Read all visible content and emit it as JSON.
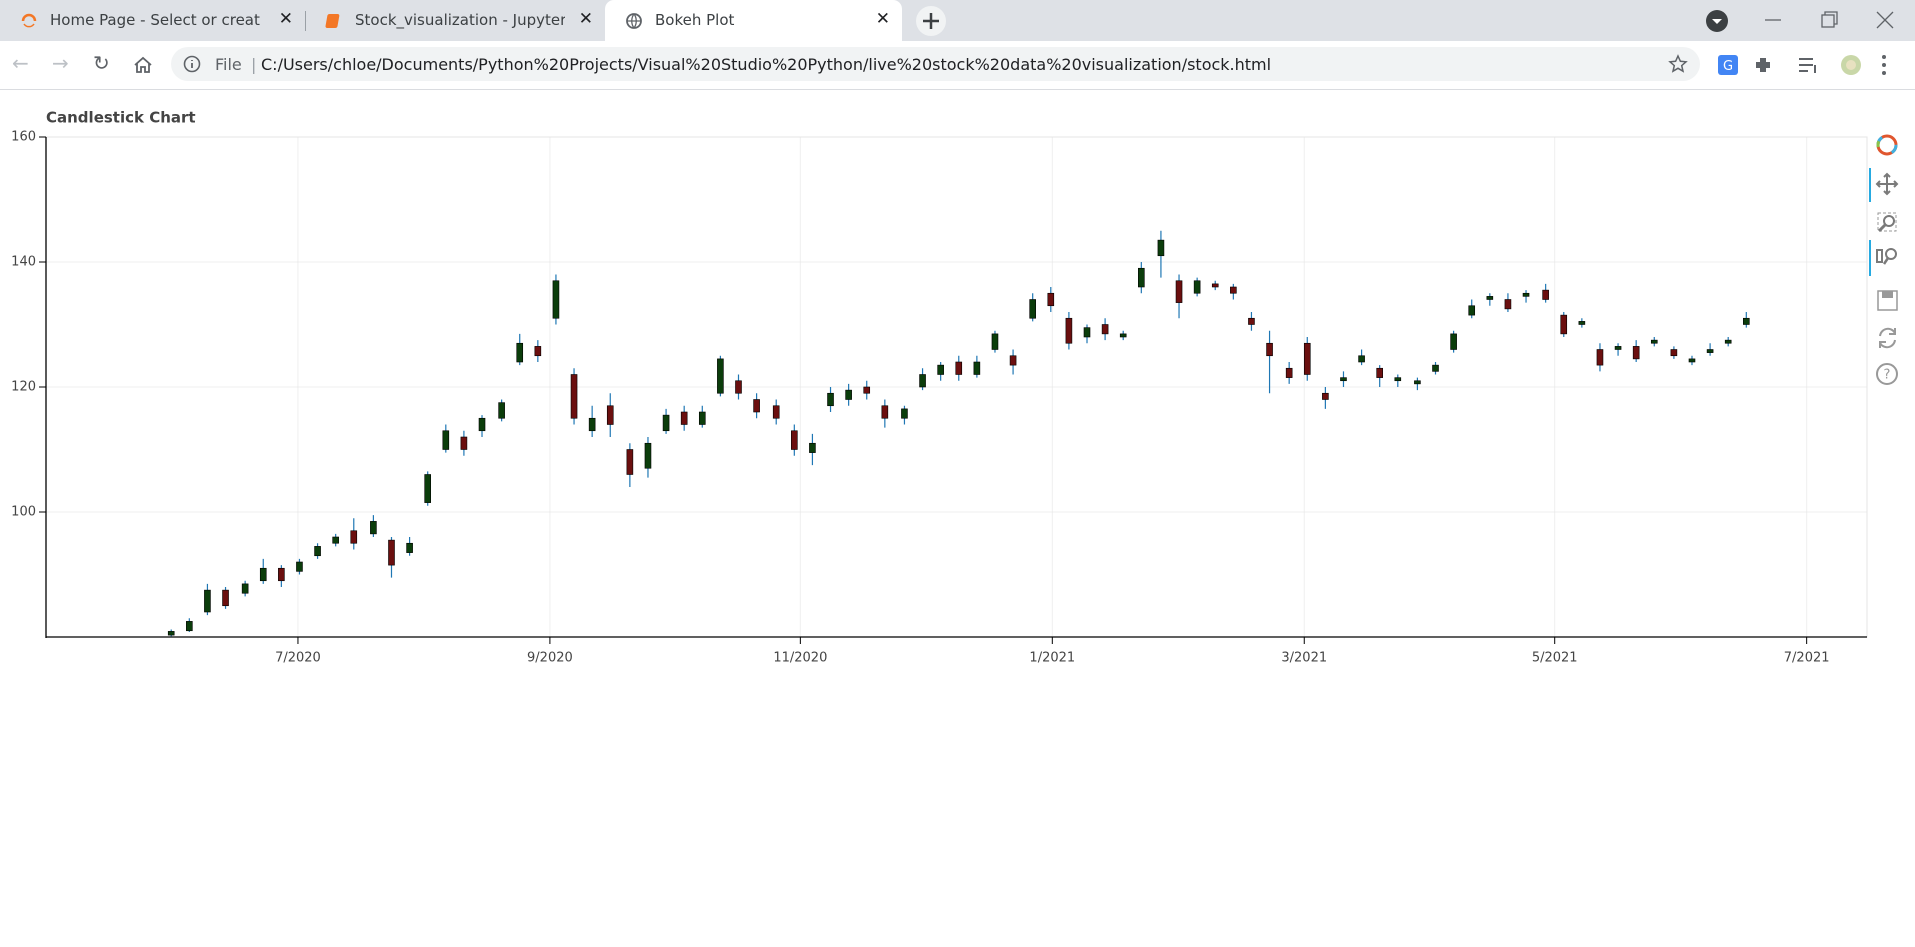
{
  "browser": {
    "tabs": [
      {
        "title": "Home Page - Select or create a n"
      },
      {
        "title": "Stock_visualization - Jupyter Not"
      },
      {
        "title": "Bokeh Plot"
      }
    ],
    "address": {
      "scheme": "File",
      "url": "C:/Users/chloe/Documents/Python%20Projects/Visual%20Studio%20Python/live%20stock%20data%20visualization/stock.html"
    }
  },
  "chart_data": {
    "type": "candlestick",
    "title": "Candlestick Chart",
    "x": [
      2020.416,
      2020.428,
      2020.44,
      2020.452,
      2020.465,
      2020.477,
      2020.489,
      2020.501,
      2020.513,
      2020.525,
      2020.537,
      2020.55,
      2020.562,
      2020.574,
      2020.586,
      2020.598,
      2020.61,
      2020.622,
      2020.635,
      2020.647,
      2020.659,
      2020.671,
      2020.683,
      2020.695,
      2020.707,
      2020.72,
      2020.732,
      2020.744,
      2020.756,
      2020.768,
      2020.78,
      2020.792,
      2020.804,
      2020.817,
      2020.829,
      2020.841,
      2020.853,
      2020.865,
      2020.877,
      2020.889,
      2020.902,
      2020.914,
      2020.926,
      2020.938,
      2020.95,
      2020.962,
      2020.974,
      2020.987,
      2020.999,
      2021.011,
      2021.023,
      2021.035,
      2021.047,
      2021.059,
      2021.072,
      2021.084,
      2021.096,
      2021.108,
      2021.12,
      2021.132,
      2021.144,
      2021.157,
      2021.169,
      2021.181,
      2021.193,
      2021.205,
      2021.217,
      2021.229,
      2021.242,
      2021.254,
      2021.266,
      2021.278,
      2021.29,
      2021.302,
      2021.314,
      2021.327,
      2021.339,
      2021.351,
      2021.363,
      2021.375,
      2021.387,
      2021.399,
      2021.412,
      2021.424,
      2021.436,
      2021.448,
      2021.46
    ],
    "open": [
      80.3,
      81,
      84,
      87.5,
      87,
      89,
      91,
      90.5,
      93,
      95,
      97,
      96.5,
      95.5,
      93.5,
      101.5,
      110,
      112,
      113,
      115,
      124,
      126.5,
      131,
      122,
      113,
      117,
      110,
      107,
      113,
      116,
      114,
      119,
      121,
      118,
      117,
      113,
      109.5,
      117,
      118,
      120,
      117,
      115,
      120,
      122,
      124,
      122,
      126,
      125,
      131,
      135,
      131,
      128,
      130,
      128,
      136,
      141,
      137,
      135,
      136.5,
      136,
      131,
      127,
      123,
      127,
      119,
      121,
      124,
      123,
      121,
      120.5,
      122.5,
      126,
      131.5,
      134,
      134,
      134.5,
      135.5,
      131.5,
      130,
      126,
      126,
      126.5,
      127,
      126,
      124,
      125.5,
      127,
      130
    ],
    "high": [
      81.2,
      83,
      88.5,
      88,
      89,
      92.5,
      91.5,
      92.5,
      95,
      96.5,
      99,
      99.5,
      96,
      96,
      106.5,
      114,
      113,
      115.5,
      118,
      128.5,
      127.5,
      138,
      123,
      117,
      119,
      111,
      112,
      116.5,
      117,
      117,
      125,
      122,
      119,
      118,
      114,
      112.5,
      120,
      120.5,
      121,
      118,
      117,
      123,
      124,
      125,
      125,
      129,
      126,
      135,
      136,
      132,
      130,
      131,
      129,
      140,
      145,
      138,
      137.5,
      137,
      136.5,
      132,
      129,
      124,
      128,
      120,
      122.5,
      126,
      123.5,
      122,
      121.5,
      124,
      129,
      134,
      135,
      135,
      135.5,
      136.5,
      132,
      131,
      127,
      127,
      127.5,
      128,
      126.5,
      125,
      127,
      128,
      132
    ],
    "low": [
      80.1,
      80.8,
      83.5,
      84.5,
      86.5,
      88.5,
      88,
      90,
      92.5,
      94.5,
      94,
      96,
      89.5,
      93,
      101,
      109.5,
      109,
      112,
      114.5,
      123.5,
      124,
      130,
      114,
      112,
      112,
      104,
      105.5,
      112.5,
      113,
      113.5,
      118.5,
      118,
      115,
      114,
      109,
      107.5,
      116,
      117,
      118,
      113.5,
      114,
      119.5,
      121,
      121,
      121.5,
      125.5,
      122,
      130.5,
      132,
      126,
      127,
      127.5,
      127.5,
      135,
      137.5,
      131,
      134.5,
      135.5,
      134,
      129,
      119,
      120.5,
      121,
      116.5,
      120,
      123.5,
      120,
      120,
      119.5,
      122,
      125.5,
      131,
      133,
      132,
      133.5,
      133.5,
      128,
      129.5,
      122.5,
      125,
      124,
      126.5,
      124.5,
      123.5,
      125,
      126.5,
      129.5
    ],
    "close": [
      80.9,
      82.5,
      87.5,
      85,
      88.5,
      91,
      89,
      92,
      94.5,
      96,
      95,
      98.5,
      91.5,
      95,
      106,
      113,
      110,
      115,
      117.5,
      127,
      125,
      137,
      115,
      115,
      114,
      106,
      111,
      115.5,
      114,
      116,
      124.5,
      119,
      116,
      115,
      110,
      111,
      119,
      119.5,
      119,
      115,
      116.5,
      122,
      123.5,
      122,
      124,
      128.5,
      123.5,
      134,
      133,
      127,
      129.5,
      128.5,
      128.5,
      139,
      143.5,
      133.5,
      137,
      136,
      135,
      130,
      125,
      121.5,
      122,
      118,
      121.5,
      125,
      121.5,
      121.5,
      121,
      123.5,
      128.5,
      133,
      134.5,
      132.5,
      135,
      134,
      128.5,
      130.5,
      123.5,
      126.5,
      124.5,
      127.5,
      125,
      124.5,
      126,
      127.5,
      131
    ],
    "xlim": [
      2020.333,
      2021.54
    ],
    "xticks": [
      {
        "value": 2020.5,
        "label": "7/2020"
      },
      {
        "value": 2020.667,
        "label": "9/2020"
      },
      {
        "value": 2020.833,
        "label": "11/2020"
      },
      {
        "value": 2021,
        "label": "1/2021"
      },
      {
        "value": 2021.167,
        "label": "3/2021"
      },
      {
        "value": 2021.333,
        "label": "5/2021"
      },
      {
        "value": 2021.5,
        "label": "7/2021"
      }
    ],
    "ylim": [
      80,
      160
    ],
    "yticks": [
      100,
      120,
      140,
      160
    ],
    "grid": true,
    "increasing_color": "#0b3d0b",
    "decreasing_color": "#6b0f0f",
    "wick_color": "#1f77b4"
  }
}
